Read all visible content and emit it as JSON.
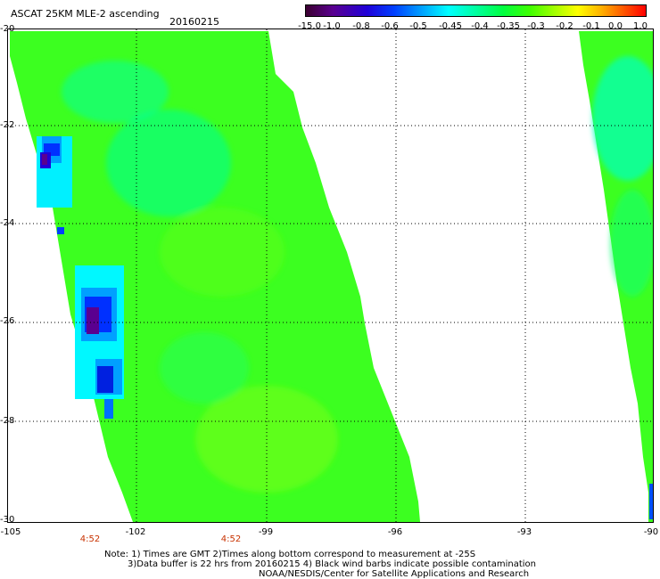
{
  "header": {
    "title": "ASCAT 25KM MLE-2 ascending",
    "date": "20160215"
  },
  "colorbar": {
    "labels": [
      "-15.0",
      "-1.0",
      "-0.8",
      "-0.6",
      "-0.5",
      "-0.45",
      "-0.4",
      "-0.35",
      "-0.3",
      "-0.2",
      "-0.1",
      "0.0",
      "1.0"
    ],
    "colors": [
      "#3b0030",
      "#5a0090",
      "#2000d8",
      "#0040ff",
      "#00a0ff",
      "#00ffff",
      "#00ffa0",
      "#00ff40",
      "#40ff00",
      "#a0ff00",
      "#ffff00",
      "#ffb000",
      "#ff5000",
      "#ff0000"
    ]
  },
  "map": {
    "lat_labels": [
      "-20",
      "-22",
      "-24",
      "-26",
      "-28",
      "-30"
    ],
    "lon_labels": [
      "-105",
      "-102",
      "-99",
      "-96",
      "-93",
      "-90"
    ],
    "time_labels": [
      "4:52",
      "4:52"
    ],
    "swath_fill": "#3cff20",
    "grid": true
  },
  "notes": {
    "line1": "Note: 1) Times are GMT 2)Times along bottom correspond to measurement at -25S",
    "line2": "3)Data buffer is 22 hrs from 20160215 4) Black wind barbs indicate possible contamination",
    "line3": "NOAA/NESDIS/Center for Satellite Applications and Research"
  }
}
